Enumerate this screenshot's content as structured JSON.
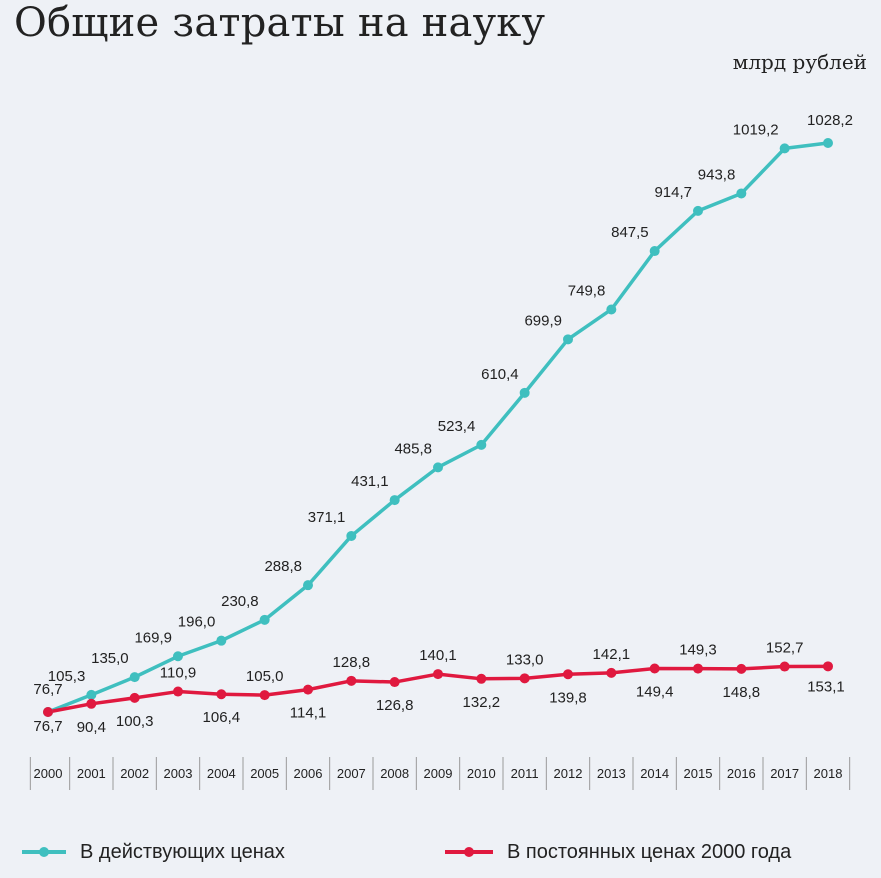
{
  "title": "Общие затраты на науку",
  "unit": "млрд рублей",
  "colors": {
    "current": "#3fbfbf",
    "constant": "#e0193f",
    "text": "#222222",
    "background": "#eef1f6"
  },
  "chart_data": {
    "type": "line",
    "title": "Общие затраты на науку",
    "ylabel": "млрд рублей",
    "categories": [
      "2000",
      "2001",
      "2002",
      "2003",
      "2004",
      "2005",
      "2006",
      "2007",
      "2008",
      "2009",
      "2010",
      "2011",
      "2012",
      "2013",
      "2014",
      "2015",
      "2016",
      "2017",
      "2018"
    ],
    "series": [
      {
        "name": "В действующих ценах",
        "color": "#3fbfbf",
        "values": [
          76.7,
          105.3,
          135.0,
          169.9,
          196.0,
          230.8,
          288.8,
          371.1,
          431.1,
          485.8,
          523.4,
          610.4,
          699.9,
          749.8,
          847.5,
          914.7,
          943.8,
          1019.2,
          1028.2
        ],
        "labels": [
          "76,7",
          "105,3",
          "135,0",
          "169,9",
          "196,0",
          "230,8",
          "288,8",
          "371,1",
          "431,1",
          "485,8",
          "523,4",
          "610,4",
          "699,9",
          "749,8",
          "847,5",
          "914,7",
          "943,8",
          "1019,2",
          "1028,2"
        ]
      },
      {
        "name": "В постоянных ценах 2000 года",
        "color": "#e0193f",
        "values": [
          76.7,
          90.4,
          100.3,
          110.9,
          106.4,
          105.0,
          114.1,
          128.8,
          126.8,
          140.1,
          132.2,
          133.0,
          139.8,
          142.1,
          149.4,
          149.3,
          148.8,
          152.7,
          153.1
        ],
        "labels": [
          "76,7",
          "90,4",
          "100,3",
          "110,9",
          "106,4",
          "105,0",
          "114,1",
          "128,8",
          "126,8",
          "140,1",
          "132,2",
          "133,0",
          "139,8",
          "142,1",
          "149,4",
          "149,3",
          "148,8",
          "152,7",
          "153,1"
        ]
      }
    ],
    "grid": false,
    "legend": "bottom"
  },
  "legend": {
    "current": "В действующих ценах",
    "constant": "В постоянных ценах 2000 года"
  }
}
